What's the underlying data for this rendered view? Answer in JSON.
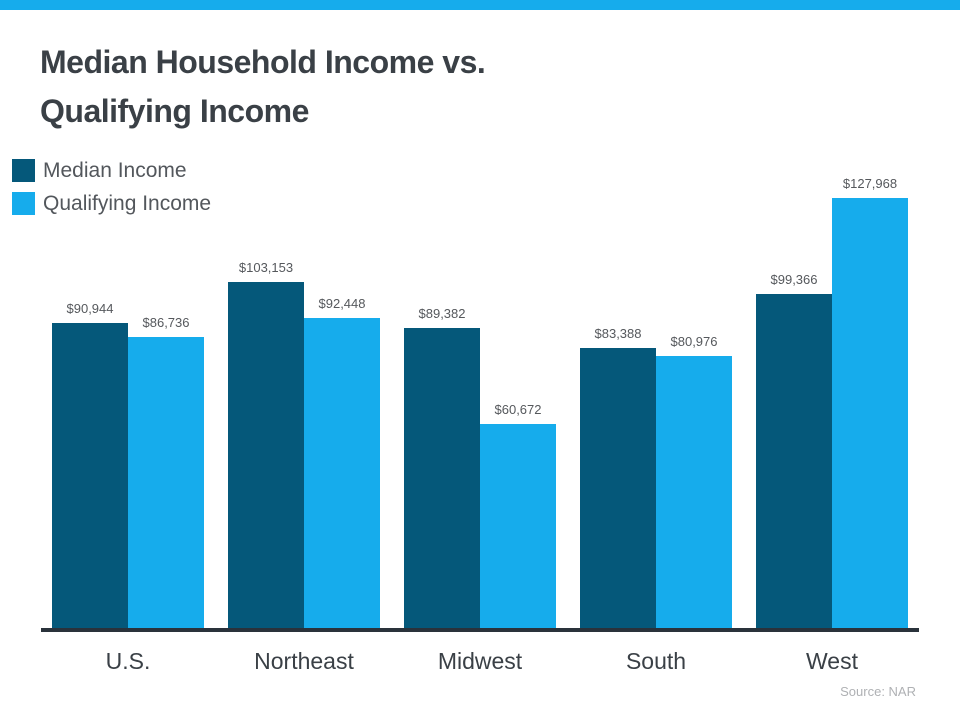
{
  "accent": {
    "top_bar_color": "#16ACEC"
  },
  "header": {
    "title_line1": "Median Household Income vs.",
    "title_line2": "Qualifying Income"
  },
  "legend": [
    {
      "label": "Median Income",
      "color": "#05587A"
    },
    {
      "label": "Qualifying Income",
      "color": "#16ACEC"
    }
  ],
  "chart_data": {
    "type": "bar",
    "title": "Median Household Income vs. Qualifying Income",
    "categories": [
      "U.S.",
      "Northeast",
      "Midwest",
      "South",
      "West"
    ],
    "series": [
      {
        "name": "Median Income",
        "color": "#05587A",
        "values": [
          90944,
          103153,
          89382,
          83388,
          99366
        ],
        "labels": [
          "$90,944",
          "$103,153",
          "$89,382",
          "$83,388",
          "$99,366"
        ]
      },
      {
        "name": "Qualifying Income",
        "color": "#16ACEC",
        "values": [
          86736,
          92448,
          60672,
          80976,
          127968
        ],
        "labels": [
          "$86,736",
          "$92,448",
          "$60,672",
          "$80,976",
          "$127,968"
        ]
      }
    ],
    "xlabel": "",
    "ylabel": "",
    "ylim": [
      0,
      140000
    ],
    "grid": false,
    "legend_position": "top-left",
    "value_label_format": "$#,###"
  },
  "footer": {
    "source": "Source: NAR"
  }
}
